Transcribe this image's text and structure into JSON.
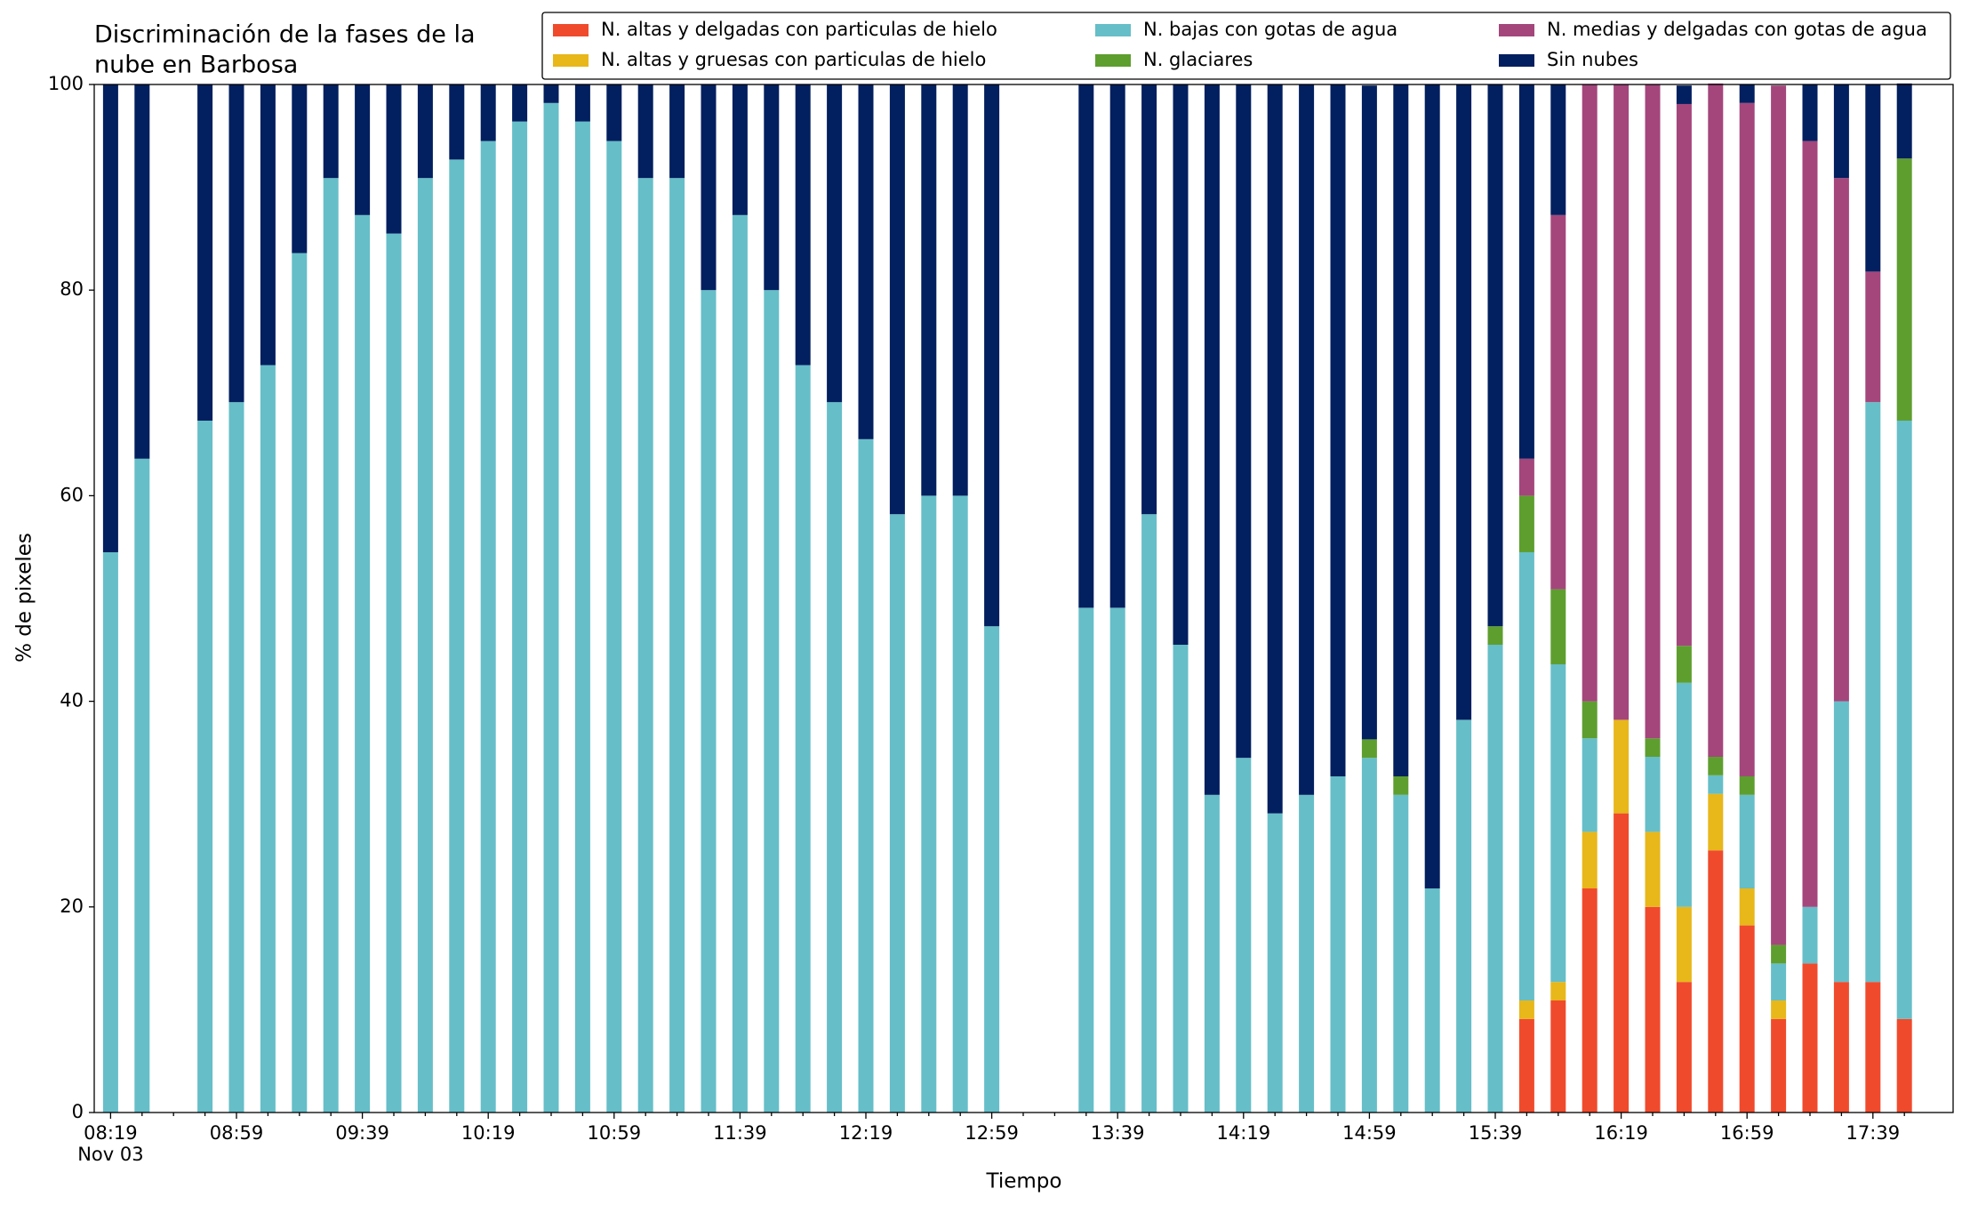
{
  "chart_data": {
    "type": "stacked_bar",
    "title": [
      "Discriminación de la fases de la",
      "nube en Barbosa"
    ],
    "xlabel": "Tiempo",
    "ylabel": "% de pixeles",
    "x_date_label": "Nov 03",
    "categories": [
      "08:19",
      null,
      null,
      null,
      "08:59",
      null,
      null,
      null,
      "09:39",
      null,
      null,
      null,
      "10:19",
      null,
      null,
      null,
      "10:59",
      null,
      null,
      null,
      "11:39",
      null,
      null,
      null,
      "12:19",
      null,
      null,
      null,
      "12:59",
      null,
      null,
      null,
      "13:39",
      null,
      null,
      null,
      "14:19",
      null,
      null,
      null,
      "14:59",
      null,
      null,
      null,
      "15:39",
      null,
      null,
      null,
      "16:19",
      null,
      null,
      null,
      "16:59",
      null,
      null,
      null,
      "17:39",
      null
    ],
    "ylim": [
      0,
      100
    ],
    "yticks": [
      0,
      20,
      40,
      60,
      80,
      100
    ],
    "series": [
      {
        "name": "N. altas y delgadas con particulas de hielo",
        "color": "#f04a2c",
        "values": [
          0,
          0,
          null,
          0,
          0,
          0,
          0,
          0,
          0,
          0,
          0,
          0,
          0,
          0,
          0,
          0,
          0,
          0,
          0,
          0,
          0,
          0,
          0,
          0,
          0,
          0,
          0,
          0,
          0,
          null,
          null,
          0,
          0,
          0,
          0,
          0,
          0,
          0,
          0,
          0,
          0,
          0,
          0,
          0,
          0,
          9.1,
          10.9,
          21.8,
          29.1,
          20,
          12.7,
          25.5,
          18.2,
          9.1,
          14.5,
          12.7,
          12.7,
          9.1
        ]
      },
      {
        "name": "N. altas y gruesas con particulas de hielo",
        "color": "#e8b71a",
        "values": [
          0,
          0,
          null,
          0,
          0,
          0,
          0,
          0,
          0,
          0,
          0,
          0,
          0,
          0,
          0,
          0,
          0,
          0,
          0,
          0,
          0,
          0,
          0,
          0,
          0,
          0,
          0,
          0,
          0,
          null,
          null,
          0,
          0,
          0,
          0,
          0,
          0,
          0,
          0,
          0,
          0,
          0,
          0,
          0,
          0,
          1.8,
          1.8,
          5.5,
          9.1,
          7.3,
          7.3,
          5.5,
          3.6,
          1.8,
          0,
          0,
          0,
          0
        ]
      },
      {
        "name": "N. bajas con gotas de agua",
        "color": "#66bec8",
        "values": [
          54.5,
          63.6,
          null,
          67.3,
          69.1,
          72.7,
          83.6,
          90.9,
          87.3,
          85.5,
          90.9,
          92.7,
          94.5,
          96.4,
          98.2,
          96.4,
          94.5,
          90.9,
          90.9,
          80,
          87.3,
          80,
          72.7,
          69.1,
          65.5,
          58.2,
          60,
          60,
          47.3,
          null,
          null,
          49.1,
          49.1,
          58.2,
          45.5,
          30.9,
          34.5,
          29.1,
          30.9,
          32.7,
          34.5,
          30.9,
          21.8,
          38.2,
          45.5,
          43.6,
          30.9,
          9.1,
          0,
          7.3,
          21.8,
          1.8,
          9.1,
          3.6,
          5.5,
          27.3,
          56.4,
          58.2
        ]
      },
      {
        "name": "N. glaciares",
        "color": "#5e9e2f",
        "values": [
          0,
          0,
          null,
          0,
          0,
          0,
          0,
          0,
          0,
          0,
          0,
          0,
          0,
          0,
          0,
          0,
          0,
          0,
          0,
          0,
          0,
          0,
          0,
          0,
          0,
          0,
          0,
          0,
          0,
          null,
          null,
          0,
          0,
          0,
          0,
          0,
          0,
          0,
          0,
          0,
          1.8,
          1.8,
          0,
          0,
          1.8,
          5.5,
          7.3,
          3.6,
          0,
          1.8,
          3.6,
          1.8,
          1.8,
          1.8,
          0,
          0,
          0,
          25.5
        ]
      },
      {
        "name": "N. medias y delgadas con gotas de agua",
        "color": "#a4467c",
        "values": [
          0,
          0,
          null,
          0,
          0,
          0,
          0,
          0,
          0,
          0,
          0,
          0,
          0,
          0,
          0,
          0,
          0,
          0,
          0,
          0,
          0,
          0,
          0,
          0,
          0,
          0,
          0,
          0,
          0,
          null,
          null,
          0,
          0,
          0,
          0,
          0,
          0,
          0,
          0,
          0,
          0,
          0,
          0,
          0,
          0,
          3.6,
          36.4,
          60,
          61.8,
          63.6,
          52.7,
          65.5,
          65.5,
          83.6,
          74.5,
          50.9,
          12.7,
          0
        ]
      },
      {
        "name": "Sin nubes",
        "color": "#021f5f",
        "values": [
          45.5,
          36.4,
          null,
          32.7,
          30.9,
          27.3,
          16.4,
          9.1,
          12.7,
          14.5,
          9.1,
          7.3,
          5.5,
          3.6,
          1.8,
          3.6,
          5.5,
          9.1,
          9.1,
          20,
          12.7,
          20,
          27.3,
          30.9,
          34.5,
          41.8,
          40,
          40,
          52.7,
          null,
          null,
          50.9,
          50.9,
          41.8,
          54.5,
          69.1,
          65.5,
          70.9,
          69.1,
          67.3,
          63.6,
          67.3,
          78.2,
          61.8,
          52.7,
          36.4,
          12.7,
          0,
          0,
          0,
          1.8,
          0,
          1.8,
          0,
          5.5,
          9.1,
          18.2,
          7.3
        ]
      }
    ]
  }
}
